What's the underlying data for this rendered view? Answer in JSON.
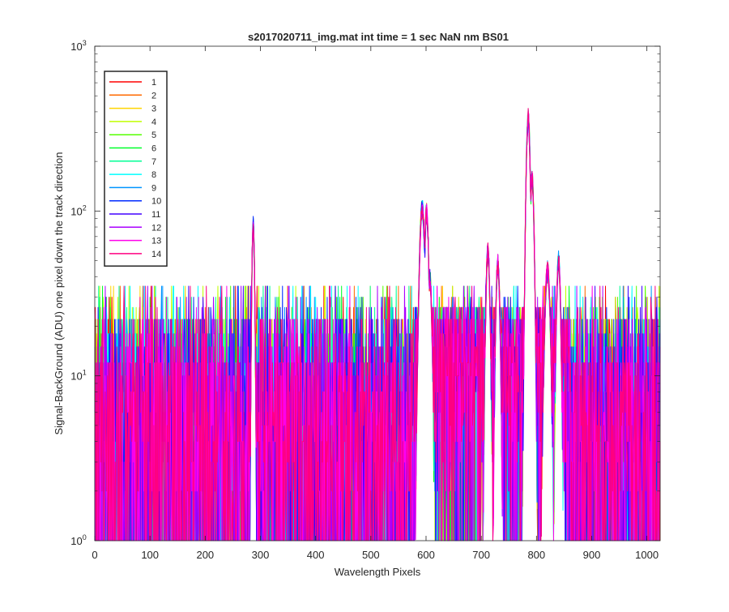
{
  "chart_data": {
    "type": "line",
    "title": "s2017020711_img.mat int time = 1 sec  NaN nm BS01",
    "xlabel": "Wavelength Pixels",
    "ylabel": "Signal-BackGround (ADU) one pixel down the track direction",
    "xlim": [
      0,
      1024
    ],
    "ylim": [
      1,
      1000
    ],
    "yscale": "log",
    "x_ticks": [
      "0",
      "100",
      "200",
      "300",
      "400",
      "500",
      "600",
      "700",
      "800",
      "900",
      "1000"
    ],
    "x_tick_values": [
      0,
      100,
      200,
      300,
      400,
      500,
      600,
      700,
      800,
      900,
      1000
    ],
    "y_ticks": [
      {
        "base": "10",
        "exp": "0",
        "value": 1
      },
      {
        "base": "10",
        "exp": "1",
        "value": 10
      },
      {
        "base": "10",
        "exp": "2",
        "value": 100
      },
      {
        "base": "10",
        "exp": "3",
        "value": 1000
      }
    ],
    "grid": false,
    "legend_position": "top-left",
    "noise_floor_values": [
      1,
      2,
      3,
      4,
      5,
      6,
      8,
      10,
      12,
      15,
      18,
      22,
      26,
      30,
      35
    ],
    "peaks": [
      {
        "x": 287,
        "y": 95,
        "width": 2
      },
      {
        "x": 593,
        "y": 120,
        "width": 4
      },
      {
        "x": 601,
        "y": 115,
        "width": 3
      },
      {
        "x": 607,
        "y": 45,
        "width": 3
      },
      {
        "x": 712,
        "y": 65,
        "width": 3
      },
      {
        "x": 730,
        "y": 55,
        "width": 3
      },
      {
        "x": 785,
        "y": 420,
        "width": 3
      },
      {
        "x": 792,
        "y": 180,
        "width": 3
      },
      {
        "x": 820,
        "y": 50,
        "width": 4
      },
      {
        "x": 840,
        "y": 58,
        "width": 3
      }
    ],
    "series": [
      {
        "name": "1",
        "color": "#ff0000"
      },
      {
        "name": "2",
        "color": "#ff6a00"
      },
      {
        "name": "3",
        "color": "#ffd500"
      },
      {
        "name": "4",
        "color": "#c0ff00"
      },
      {
        "name": "5",
        "color": "#55ff00"
      },
      {
        "name": "6",
        "color": "#00ff2a"
      },
      {
        "name": "7",
        "color": "#00ff95"
      },
      {
        "name": "8",
        "color": "#00ffff"
      },
      {
        "name": "9",
        "color": "#0095ff"
      },
      {
        "name": "10",
        "color": "#002aff"
      },
      {
        "name": "11",
        "color": "#4000ff"
      },
      {
        "name": "12",
        "color": "#aa00ff"
      },
      {
        "name": "13",
        "color": "#ff00ea"
      },
      {
        "name": "14",
        "color": "#ff0080"
      }
    ]
  }
}
